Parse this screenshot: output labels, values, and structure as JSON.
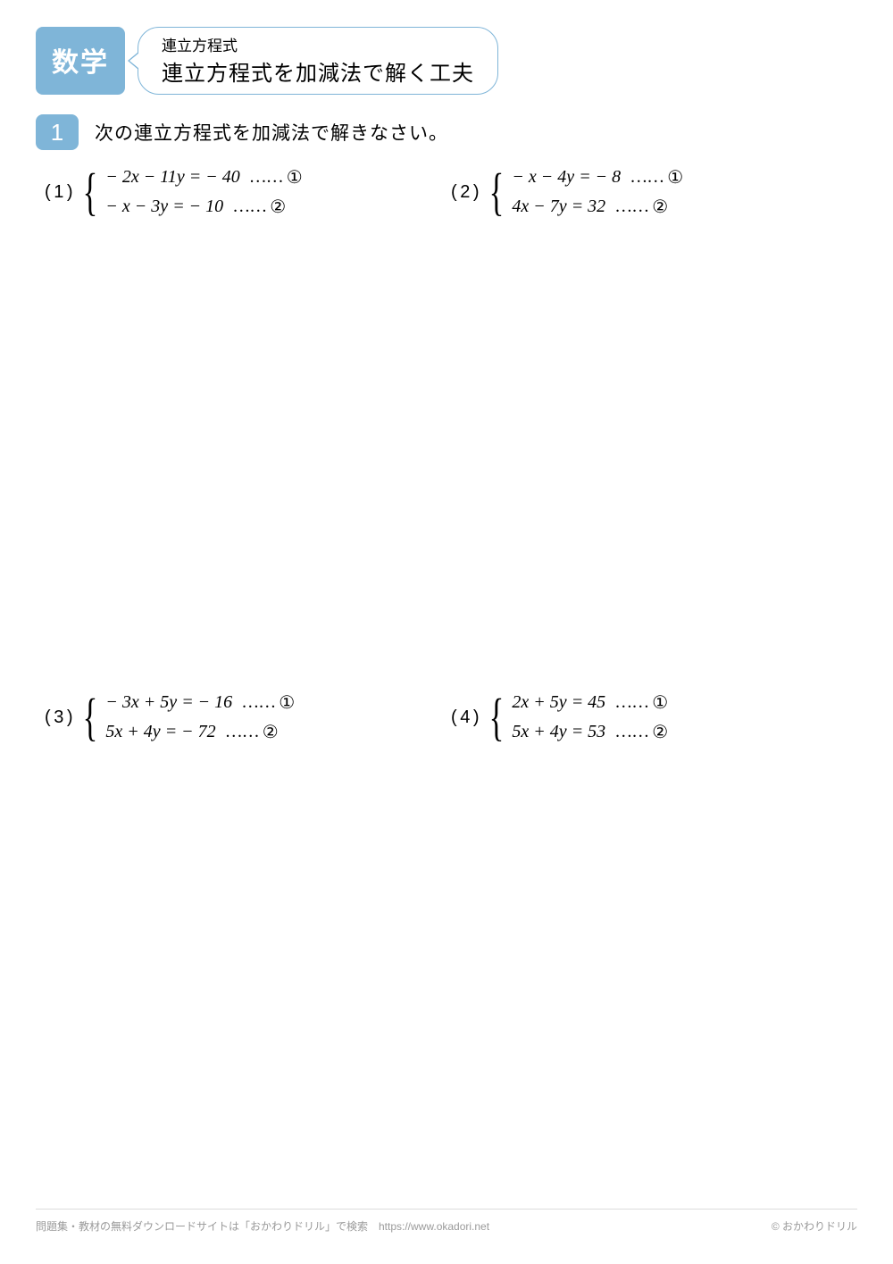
{
  "colors": {
    "accent": "#7fb5d8",
    "text": "#000000",
    "background": "#ffffff",
    "footer_text": "#9a9a9a",
    "footer_rule": "#dcdcdc"
  },
  "typography": {
    "subject_fontsize": 30,
    "title_small_fontsize": 17,
    "title_big_fontsize": 24,
    "section_num_fontsize": 26,
    "section_text_fontsize": 21,
    "problem_fontsize": 20,
    "footer_fontsize": 12
  },
  "header": {
    "subject": "数学",
    "title_small": "連立方程式",
    "title_big": "連立方程式を加減法で解く工夫"
  },
  "section": {
    "number": "1",
    "instruction": "次の連立方程式を加減法で解きなさい。"
  },
  "labels": {
    "dots": "……",
    "circled": [
      "①",
      "②"
    ]
  },
  "problems": [
    {
      "num": "( 1 )",
      "eqs": [
        "− 2<i>x</i> − 11<i>y</i> = − 40",
        "− <i>x</i> − 3<i>y</i> = − 10"
      ]
    },
    {
      "num": "( 2 )",
      "eqs": [
        "− <i>x</i> − 4<i>y</i> = − 8",
        "4<i>x</i> − 7<i>y</i> = 32"
      ]
    },
    {
      "num": "( 3 )",
      "eqs": [
        "− 3<i>x</i> + 5<i>y</i> = − 16",
        "5<i>x</i> + 4<i>y</i> = − 72"
      ]
    },
    {
      "num": "( 4 )",
      "eqs": [
        "2<i>x</i> + 5<i>y</i> = 45",
        "5<i>x</i> + 4<i>y</i> = 53"
      ]
    }
  ],
  "footer": {
    "left": "問題集・教材の無料ダウンロードサイトは「おかわりドリル」で検索　https://www.okadori.net",
    "right": "© おかわりドリル"
  }
}
